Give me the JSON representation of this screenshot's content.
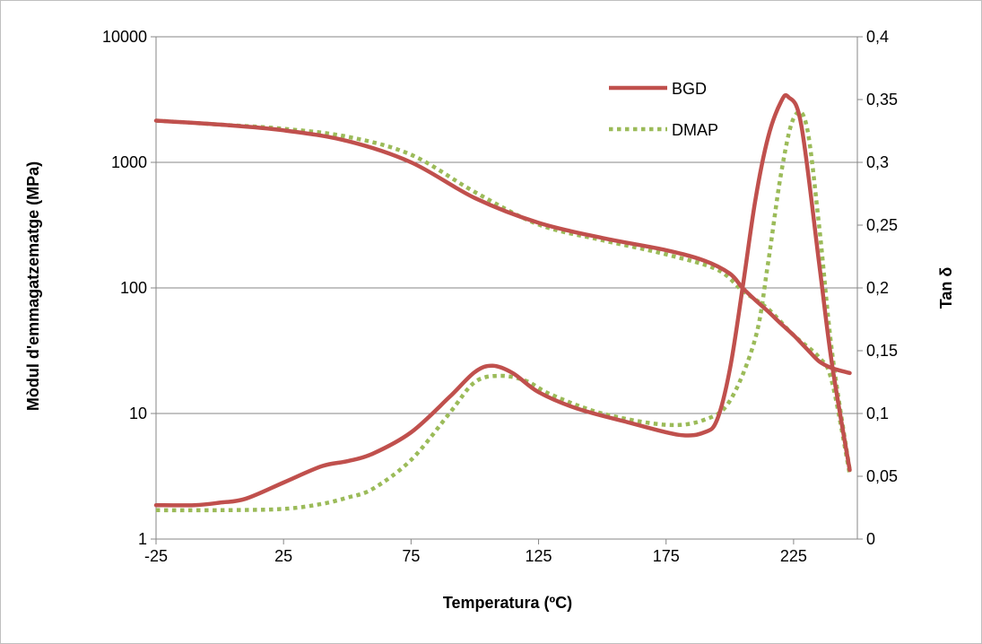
{
  "chart_data": {
    "type": "line",
    "title": "",
    "xlabel": "Temperatura (ºC)",
    "ylabel_left": "Mòdul d'emmagatzematge (MPa)",
    "ylabel_right": "Tan δ",
    "xlim": [
      -25,
      250
    ],
    "ylim_left": [
      1,
      10000
    ],
    "ylim_right": [
      0,
      0.4
    ],
    "left_scale": "log",
    "x_ticks": [
      "-25",
      "25",
      "75",
      "125",
      "175",
      "225"
    ],
    "x_tick_values": [
      -25,
      25,
      75,
      125,
      175,
      225
    ],
    "y_left_ticks": [
      "1",
      "10",
      "100",
      "1000",
      "10000"
    ],
    "y_left_tick_values": [
      1,
      10,
      100,
      1000,
      10000
    ],
    "y_right_ticks": [
      "0",
      "0,05",
      "0,1",
      "0,15",
      "0,2",
      "0,25",
      "0,3",
      "0,35",
      "0,4"
    ],
    "y_right_tick_values": [
      0,
      0.05,
      0.1,
      0.15,
      0.2,
      0.25,
      0.3,
      0.35,
      0.4
    ],
    "grid": "horizontal",
    "legend_position": "top-right",
    "legend": [
      {
        "name": "BGD",
        "color": "#c0504d",
        "style": "solid"
      },
      {
        "name": "DMAP",
        "color": "#9bbb59",
        "style": "dotted"
      }
    ],
    "series": [
      {
        "name": "BGD",
        "quantity": "storage modulus",
        "axis": "left",
        "color": "#c0504d",
        "style": "solid",
        "x": [
          -25,
          0,
          25,
          50,
          75,
          100,
          125,
          150,
          175,
          190,
          200,
          205,
          210,
          215,
          220,
          225,
          230,
          235,
          240,
          247
        ],
        "y": [
          2150,
          2000,
          1800,
          1480,
          1000,
          520,
          330,
          250,
          200,
          165,
          130,
          100,
          80,
          65,
          52,
          42,
          33,
          26,
          23,
          21
        ]
      },
      {
        "name": "DMAP",
        "quantity": "storage modulus",
        "axis": "left",
        "color": "#9bbb59",
        "style": "dotted",
        "x": [
          -25,
          0,
          25,
          50,
          75,
          100,
          125,
          150,
          175,
          195,
          205,
          215,
          225,
          235,
          240,
          247
        ],
        "y": [
          2150,
          2000,
          1850,
          1600,
          1150,
          580,
          320,
          240,
          185,
          140,
          95,
          68,
          42,
          28,
          18,
          3.3
        ]
      },
      {
        "name": "BGD",
        "quantity": "tan delta",
        "axis": "right",
        "color": "#c0504d",
        "style": "solid",
        "x": [
          -25,
          -10,
          0,
          10,
          25,
          40,
          50,
          60,
          75,
          90,
          100,
          107,
          115,
          125,
          140,
          160,
          180,
          190,
          195,
          200,
          205,
          210,
          215,
          220,
          223,
          228,
          235,
          240,
          247
        ],
        "y": [
          0.027,
          0.027,
          0.029,
          0.032,
          0.045,
          0.058,
          0.062,
          0.068,
          0.085,
          0.113,
          0.133,
          0.138,
          0.132,
          0.117,
          0.104,
          0.093,
          0.083,
          0.085,
          0.095,
          0.135,
          0.2,
          0.27,
          0.32,
          0.348,
          0.352,
          0.33,
          0.22,
          0.14,
          0.055
        ]
      },
      {
        "name": "DMAP",
        "quantity": "tan delta",
        "axis": "right",
        "color": "#9bbb59",
        "style": "dotted",
        "x": [
          -25,
          0,
          25,
          40,
          50,
          60,
          75,
          90,
          100,
          110,
          120,
          130,
          150,
          175,
          190,
          200,
          210,
          215,
          220,
          225,
          230,
          235,
          240,
          247
        ],
        "y": [
          0.023,
          0.023,
          0.024,
          0.028,
          0.033,
          0.04,
          0.063,
          0.1,
          0.125,
          0.13,
          0.126,
          0.115,
          0.1,
          0.091,
          0.095,
          0.11,
          0.16,
          0.22,
          0.29,
          0.335,
          0.33,
          0.25,
          0.15,
          0.055
        ]
      }
    ]
  }
}
